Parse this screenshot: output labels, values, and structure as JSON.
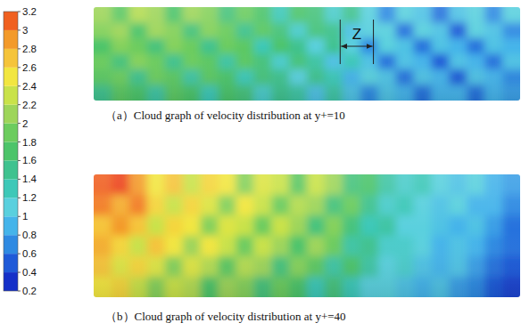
{
  "chart_data": [
    {
      "type": "heatmap",
      "title": "（a）Cloud graph of velocity distribution at y+=10",
      "annotations": [
        {
          "text": "Z"
        }
      ],
      "color_range": [
        0.2,
        3.2
      ],
      "color_ticks": [
        3.2,
        3,
        2.8,
        2.6,
        2.4,
        2.2,
        2,
        1.8,
        1.6,
        1.4,
        1.2,
        1,
        0.8,
        0.6,
        0.4,
        0.2
      ],
      "cells": [
        [
          2.0,
          1.7,
          2.1,
          2.0,
          1.6,
          2.0,
          1.9,
          1.5,
          1.8,
          1.6,
          1.2,
          1.6,
          1.5,
          1.1,
          1.4,
          1.0,
          0.6,
          1.0,
          0.9,
          0.5,
          0.9,
          1.0,
          0.6,
          1.0
        ],
        [
          1.9,
          2.0,
          1.6,
          2.0,
          1.9,
          1.5,
          1.9,
          1.8,
          1.4,
          1.7,
          1.5,
          1.1,
          1.5,
          1.4,
          0.9,
          1.0,
          1.0,
          0.5,
          1.0,
          0.9,
          0.4,
          1.0,
          0.9,
          0.6
        ],
        [
          1.6,
          1.9,
          1.8,
          1.5,
          1.9,
          1.8,
          1.4,
          1.8,
          1.7,
          1.2,
          1.6,
          1.4,
          1.0,
          1.4,
          1.0,
          0.6,
          1.0,
          0.9,
          0.5,
          0.9,
          0.8,
          0.5,
          0.9,
          0.8
        ],
        [
          1.8,
          1.5,
          1.9,
          1.8,
          1.4,
          1.8,
          1.7,
          1.3,
          1.7,
          1.5,
          1.1,
          1.5,
          1.3,
          0.9,
          1.2,
          0.9,
          0.5,
          0.9,
          0.8,
          0.4,
          0.9,
          0.8,
          0.5,
          0.9
        ],
        [
          1.7,
          1.8,
          1.4,
          1.8,
          1.7,
          1.3,
          1.7,
          1.6,
          1.2,
          1.5,
          1.4,
          1.0,
          1.4,
          1.2,
          0.8,
          1.0,
          0.9,
          0.5,
          0.9,
          0.8,
          0.4,
          0.9,
          0.8,
          0.6
        ],
        [
          1.4,
          1.7,
          1.6,
          1.3,
          1.7,
          1.6,
          1.2,
          1.6,
          1.5,
          1.1,
          1.4,
          1.3,
          0.9,
          1.3,
          0.9,
          0.6,
          0.9,
          0.8,
          0.5,
          0.8,
          0.8,
          0.5,
          0.8,
          0.7
        ]
      ]
    },
    {
      "type": "heatmap",
      "title": "（b）Cloud graph of velocity distribution at y+=40",
      "color_range": [
        0.2,
        3.2
      ],
      "color_ticks": [
        3.2,
        3,
        2.8,
        2.6,
        2.4,
        2.2,
        2,
        1.8,
        1.6,
        1.4,
        1.2,
        1,
        0.8,
        0.6,
        0.4,
        0.2
      ],
      "cells": [
        [
          3.0,
          3.1,
          2.8,
          2.4,
          2.6,
          2.2,
          2.5,
          2.4,
          1.9,
          2.3,
          2.2,
          1.7,
          2.2,
          2.0,
          1.5,
          1.6,
          1.3,
          1.1,
          1.2,
          1.0,
          0.9,
          1.0,
          0.8,
          0.7
        ],
        [
          2.9,
          2.7,
          2.9,
          2.5,
          2.2,
          2.5,
          2.3,
          1.9,
          2.4,
          2.2,
          1.8,
          2.1,
          2.0,
          1.5,
          1.8,
          1.4,
          1.1,
          1.2,
          1.0,
          0.9,
          1.0,
          0.8,
          0.8,
          0.6
        ],
        [
          2.6,
          2.8,
          2.6,
          2.2,
          2.5,
          2.4,
          1.9,
          2.3,
          2.2,
          1.8,
          2.2,
          2.0,
          1.5,
          1.9,
          1.5,
          1.2,
          1.3,
          1.0,
          1.0,
          0.9,
          0.8,
          0.9,
          0.7,
          0.5
        ],
        [
          2.7,
          2.5,
          2.2,
          2.6,
          2.4,
          2.0,
          2.4,
          2.2,
          1.8,
          2.2,
          2.0,
          1.6,
          2.0,
          1.8,
          1.3,
          1.4,
          1.1,
          1.1,
          1.0,
          0.8,
          0.9,
          0.8,
          0.6,
          0.5
        ],
        [
          2.6,
          2.3,
          2.5,
          2.3,
          1.9,
          2.3,
          2.1,
          1.7,
          2.1,
          2.0,
          1.5,
          1.9,
          1.7,
          1.3,
          1.6,
          1.3,
          1.0,
          1.1,
          0.9,
          0.8,
          0.9,
          0.7,
          0.5,
          0.4
        ],
        [
          2.4,
          2.5,
          2.2,
          1.9,
          2.2,
          2.1,
          1.6,
          2.0,
          1.9,
          1.5,
          1.8,
          1.6,
          1.2,
          1.5,
          1.2,
          1.0,
          1.0,
          0.9,
          0.8,
          0.9,
          0.7,
          0.6,
          0.4,
          0.3
        ]
      ]
    }
  ]
}
